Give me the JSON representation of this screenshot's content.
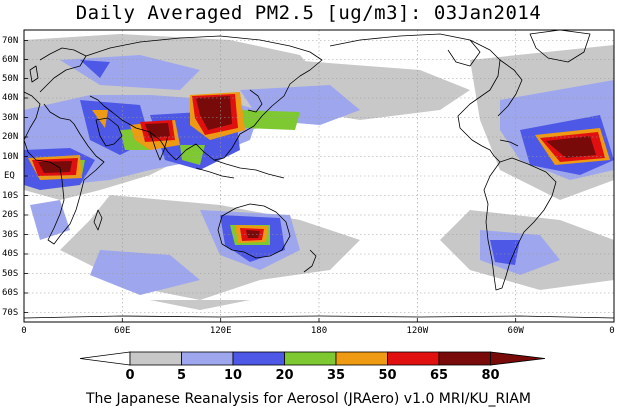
{
  "title": "Daily Averaged PM2.5 [ug/m3]: 03Jan2014",
  "footer": "The Japanese Reanalysis for Aerosol (JRAero) v1.0 MRI/KU_RIAM",
  "lat_labels": [
    "70N",
    "60N",
    "50N",
    "40N",
    "30N",
    "20N",
    "10N",
    "EQ",
    "10S",
    "20S",
    "30S",
    "40S",
    "50S",
    "60S",
    "70S"
  ],
  "lon_labels": [
    "0",
    "60E",
    "120E",
    "180",
    "120W",
    "60W",
    "0"
  ],
  "colorbar": {
    "levels": [
      "0",
      "5",
      "10",
      "20",
      "35",
      "50",
      "65",
      "80"
    ],
    "colors": [
      "#ffffff",
      "#c8c8c8",
      "#9ea6ee",
      "#4e58e6",
      "#7ec832",
      "#ee9a12",
      "#e01010",
      "#780a0a"
    ]
  }
}
